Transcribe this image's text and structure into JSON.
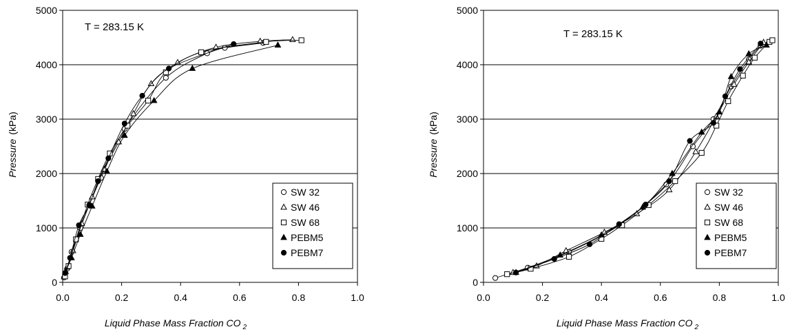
{
  "chart_data": [
    {
      "type": "scatter",
      "annotation": "T = 283.15 K",
      "xlabel": "Liquid Phase Mass Fraction CO",
      "xlabel_sub": "2",
      "ylabel_italic": "Pressure",
      "ylabel_unit": "(kPa)",
      "xlim": [
        0.0,
        1.0
      ],
      "ylim": [
        0,
        5000
      ],
      "xticks": [
        "0.0",
        "0.2",
        "0.4",
        "0.6",
        "0.8",
        "1.0"
      ],
      "yticks": [
        "0",
        "1000",
        "2000",
        "3000",
        "4000",
        "5000"
      ],
      "grid": "horizontal",
      "legend_position": "bottom-right",
      "series": [
        {
          "name": "SW 32",
          "marker": "circle-open",
          "x": [
            0.005,
            0.015,
            0.03,
            0.06,
            0.09,
            0.13,
            0.21,
            0.35,
            0.49,
            0.55,
            0.68
          ],
          "y": [
            90,
            250,
            560,
            1000,
            1420,
            1920,
            2820,
            3760,
            4210,
            4310,
            4400
          ]
        },
        {
          "name": "SW 46",
          "marker": "triangle-open",
          "x": [
            0.005,
            0.015,
            0.035,
            0.065,
            0.1,
            0.14,
            0.19,
            0.24,
            0.3,
            0.39,
            0.52,
            0.67,
            0.78
          ],
          "y": [
            100,
            280,
            580,
            1080,
            1570,
            2080,
            2580,
            3100,
            3650,
            4040,
            4320,
            4430,
            4460
          ]
        },
        {
          "name": "SW 68",
          "marker": "square-open",
          "x": [
            0.008,
            0.02,
            0.045,
            0.085,
            0.12,
            0.16,
            0.22,
            0.29,
            0.35,
            0.47,
            0.69,
            0.81
          ],
          "y": [
            110,
            300,
            790,
            1430,
            1900,
            2370,
            2880,
            3340,
            3860,
            4230,
            4420,
            4450
          ]
        },
        {
          "name": "PEBM5",
          "marker": "triangle-filled",
          "x": [
            0.01,
            0.03,
            0.06,
            0.1,
            0.15,
            0.21,
            0.31,
            0.44,
            0.73
          ],
          "y": [
            200,
            450,
            880,
            1400,
            2040,
            2700,
            3340,
            3930,
            4360
          ]
        },
        {
          "name": "PEBM7",
          "marker": "circle-filled",
          "x": [
            0.008,
            0.025,
            0.055,
            0.09,
            0.12,
            0.155,
            0.21,
            0.27,
            0.36,
            0.58
          ],
          "y": [
            170,
            450,
            1050,
            1420,
            1860,
            2280,
            2920,
            3430,
            3930,
            4380
          ]
        }
      ]
    },
    {
      "type": "scatter",
      "annotation": "T = 283.15 K",
      "xlabel": "Liquid Phase Mass Fraction CO",
      "xlabel_sub": "2",
      "ylabel_italic": "Pressure",
      "ylabel_unit": "(kPa)",
      "xlim": [
        0.0,
        1.0
      ],
      "ylim": [
        0,
        5000
      ],
      "xticks": [
        "0.0",
        "0.2",
        "0.4",
        "0.6",
        "0.8",
        "1.0"
      ],
      "yticks": [
        "0",
        "1000",
        "2000",
        "3000",
        "4000",
        "5000"
      ],
      "grid": "horizontal",
      "legend_position": "bottom-right",
      "series": [
        {
          "name": "SW 32",
          "marker": "circle-open",
          "x": [
            0.04,
            0.15,
            0.29,
            0.46,
            0.62,
            0.71,
            0.78,
            0.84,
            0.9,
            0.94
          ],
          "y": [
            80,
            270,
            560,
            1050,
            1800,
            2500,
            3000,
            3600,
            4100,
            4350
          ]
        },
        {
          "name": "SW 46",
          "marker": "triangle-open",
          "x": [
            0.1,
            0.18,
            0.28,
            0.41,
            0.52,
            0.63,
            0.72,
            0.79,
            0.85,
            0.9,
            0.95
          ],
          "y": [
            180,
            300,
            580,
            920,
            1260,
            1700,
            2400,
            3050,
            3640,
            4050,
            4410
          ]
        },
        {
          "name": "SW 68",
          "marker": "square-open",
          "x": [
            0.08,
            0.16,
            0.29,
            0.4,
            0.47,
            0.56,
            0.65,
            0.74,
            0.79,
            0.83,
            0.88,
            0.92,
            0.97,
            0.98
          ],
          "y": [
            150,
            250,
            470,
            800,
            1050,
            1420,
            1860,
            2380,
            2880,
            3330,
            3800,
            4130,
            4420,
            4450
          ]
        },
        {
          "name": "PEBM5",
          "marker": "triangle-filled",
          "x": [
            0.11,
            0.26,
            0.4,
            0.54,
            0.64,
            0.74,
            0.8,
            0.84,
            0.9,
            0.96
          ],
          "y": [
            180,
            500,
            870,
            1380,
            2000,
            2760,
            3130,
            3780,
            4200,
            4360
          ]
        },
        {
          "name": "PEBM7",
          "marker": "circle-filled",
          "x": [
            0.11,
            0.24,
            0.36,
            0.46,
            0.55,
            0.63,
            0.7,
            0.78,
            0.82,
            0.87,
            0.94
          ],
          "y": [
            180,
            430,
            700,
            1070,
            1430,
            1860,
            2600,
            2930,
            3420,
            3920,
            4390
          ]
        }
      ]
    }
  ]
}
